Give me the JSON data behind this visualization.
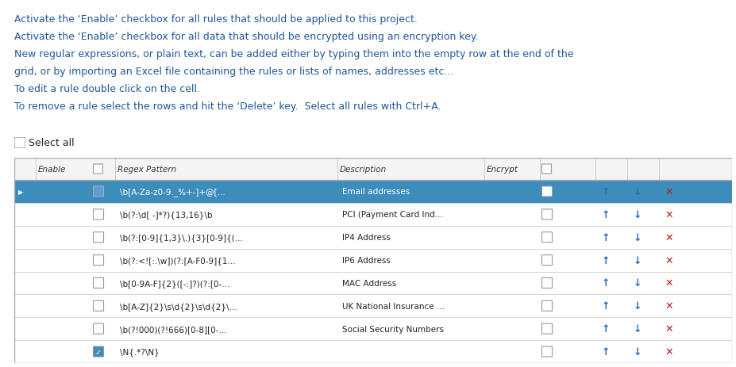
{
  "bg_color": "#ffffff",
  "text_color_blue": "#1e5799",
  "text_color_black": "#222222",
  "instructions": [
    "Activate the ‘Enable’ checkbox for all rules that should be applied to this project.",
    "Activate the ‘Enable’ checkbox for all data that should be encrypted using an encryption key.",
    "New regular expressions, or plain text, can be added either by typing them into the empty row at the end of the",
    "grid, or by importing an Excel file containing the rules or lists of names, addresses etc...",
    "To edit a rule double click on the cell.",
    "To remove a rule select the rows and hit the ‘Delete’ key.  Select all rules with Ctrl+A."
  ],
  "select_all_label": "Select all",
  "rows": [
    {
      "enable": false,
      "selected": true,
      "regex": "\\b[A-Za-z0-9._%+-]+@[...",
      "description": "Email addresses",
      "encrypt": false
    },
    {
      "enable": false,
      "selected": false,
      "regex": "\\b(?:\\d[ -]*?){13,16}\\b",
      "description": "PCI (Payment Card Ind...",
      "encrypt": false
    },
    {
      "enable": false,
      "selected": false,
      "regex": "\\b(?:[0-9]{1,3}\\.){3}[0-9]{(...",
      "description": "IP4 Address",
      "encrypt": false
    },
    {
      "enable": false,
      "selected": false,
      "regex": "\\b(?:<![:.\\w])(?:[A-F0-9]{1...",
      "description": "IP6 Address",
      "encrypt": false
    },
    {
      "enable": false,
      "selected": false,
      "regex": "\\b[0-9A-F]{2}([-:]?)(?:[0-...",
      "description": "MAC Address",
      "encrypt": false
    },
    {
      "enable": false,
      "selected": false,
      "regex": "\\b[A-Z]{2}\\s\\d{2}\\s\\d{2}\\...",
      "description": "UK National Insurance ...",
      "encrypt": false
    },
    {
      "enable": false,
      "selected": false,
      "regex": "\\b(?!000)(?!666)[0-8][0-...",
      "description": "Social Security Numbers",
      "encrypt": false
    },
    {
      "enable": true,
      "selected": false,
      "regex": "\\N{.*?\\N}",
      "description": "",
      "encrypt": false
    }
  ],
  "selected_row_color": "#3c8dbc",
  "arrow_color": "#2b6cb0",
  "cross_color": "#b22222",
  "checkbox_border_color": "#999999",
  "checked_color": "#3c8dbc",
  "header_bg": "#f5f5f5",
  "row_bg_alt": "#ffffff",
  "grid_line_color": "#cccccc",
  "outer_border_color": "#aaaaaa"
}
